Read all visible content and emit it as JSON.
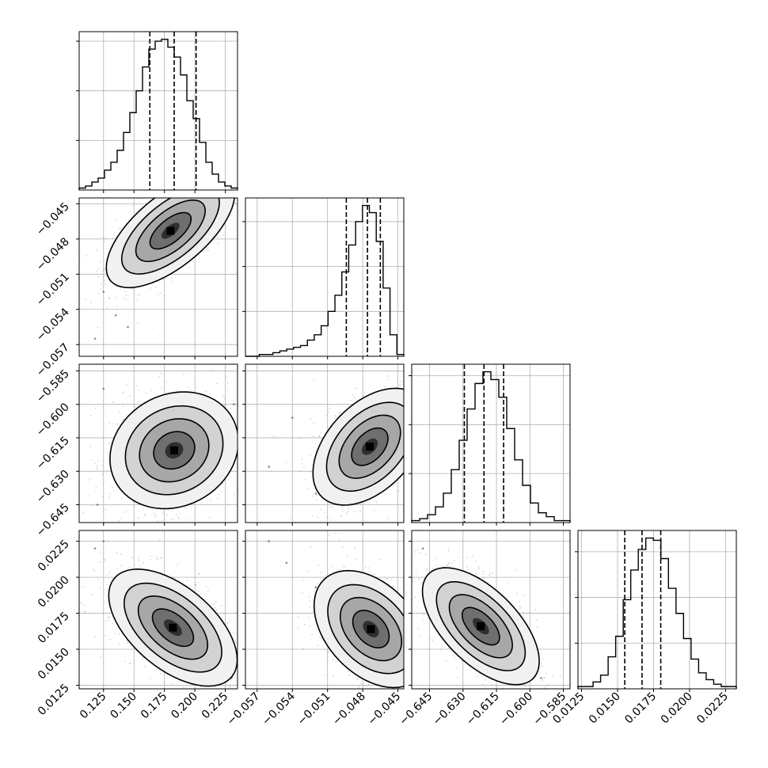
{
  "chart_data": {
    "type": "corner",
    "title": "",
    "params": [
      {
        "range": [
          0.105,
          0.235
        ],
        "ticks": [
          0.125,
          0.15,
          0.175,
          0.2,
          0.225
        ],
        "tick_labels": [
          "0.125",
          "0.150",
          "0.175",
          "0.200",
          "0.225"
        ],
        "quantiles": [
          0.163,
          0.183,
          0.201
        ],
        "hist": [
          1,
          2,
          4,
          6,
          10,
          14,
          20,
          29,
          39,
          50,
          62,
          71,
          75,
          76,
          72,
          67,
          58,
          45,
          36,
          24,
          14,
          8,
          4,
          2,
          1
        ]
      },
      {
        "range": [
          -0.058,
          -0.0445
        ],
        "ticks": [
          -0.057,
          -0.054,
          -0.051,
          -0.048,
          -0.045
        ],
        "tick_labels": [
          "−0.057",
          "−0.054",
          "−0.051",
          "−0.048",
          "−0.045"
        ],
        "quantiles": [
          -0.0494,
          -0.0476,
          -0.0465
        ],
        "hist": [
          0,
          0,
          1,
          1,
          2,
          3,
          4,
          5,
          6,
          9,
          12,
          17,
          25,
          34,
          47,
          62,
          75,
          84,
          80,
          64,
          38,
          12,
          1
        ]
      },
      {
        "range": [
          -0.653,
          -0.582
        ],
        "ticks": [
          -0.645,
          -0.63,
          -0.615,
          -0.6,
          -0.585
        ],
        "tick_labels": [
          "−0.645",
          "−0.630",
          "−0.615",
          "−0.600",
          "−0.585"
        ],
        "quantiles": [
          -0.6294,
          -0.6206,
          -0.6118
        ],
        "hist": [
          1,
          2,
          4,
          8,
          15,
          27,
          42,
          58,
          71,
          77,
          73,
          64,
          48,
          32,
          19,
          10,
          5,
          3,
          1,
          1
        ]
      },
      {
        "range": [
          0.01225,
          0.02325
        ],
        "ticks": [
          0.0125,
          0.015,
          0.0175,
          0.02,
          0.0225
        ],
        "tick_labels": [
          "0.0125",
          "0.0150",
          "0.0175",
          "0.0200",
          "0.0225"
        ],
        "quantiles": [
          0.0155,
          0.0167,
          0.018
        ],
        "hist": [
          1,
          1,
          3,
          6,
          14,
          23,
          39,
          52,
          61,
          66,
          65,
          57,
          44,
          33,
          22,
          13,
          7,
          4,
          2,
          1,
          1
        ]
      }
    ],
    "pairs": [
      {
        "x": 0,
        "y": 1,
        "peak": [
          0.18,
          -0.0473
        ],
        "outliers": [
          [
            0.125,
            -0.0525
          ],
          [
            0.135,
            -0.0545
          ],
          [
            0.118,
            -0.0565
          ],
          [
            0.145,
            -0.0555
          ]
        ]
      },
      {
        "x": 0,
        "y": 2,
        "peak": [
          0.183,
          -0.6206
        ],
        "outliers": [
          [
            0.12,
            -0.645
          ],
          [
            0.232,
            -0.6
          ],
          [
            0.125,
            -0.593
          ]
        ]
      },
      {
        "x": 1,
        "y": 2,
        "peak": [
          -0.0474,
          -0.619
        ],
        "outliers": [
          [
            -0.056,
            -0.628
          ],
          [
            -0.054,
            -0.606
          ],
          [
            -0.052,
            -0.64
          ]
        ]
      },
      {
        "x": 0,
        "y": 3,
        "peak": [
          0.182,
          0.0165
        ],
        "outliers": [
          [
            0.118,
            0.022
          ],
          [
            0.125,
            0.0225
          ],
          [
            0.23,
            0.013
          ]
        ]
      },
      {
        "x": 1,
        "y": 3,
        "peak": [
          -0.0473,
          0.0164
        ],
        "outliers": [
          [
            -0.056,
            0.0225
          ],
          [
            -0.0545,
            0.021
          ],
          [
            -0.052,
            0.0193
          ]
        ]
      },
      {
        "x": 2,
        "y": 3,
        "peak": [
          -0.622,
          0.0166
        ],
        "outliers": [
          [
            -0.648,
            0.022
          ],
          [
            -0.595,
            0.013
          ]
        ]
      }
    ]
  }
}
